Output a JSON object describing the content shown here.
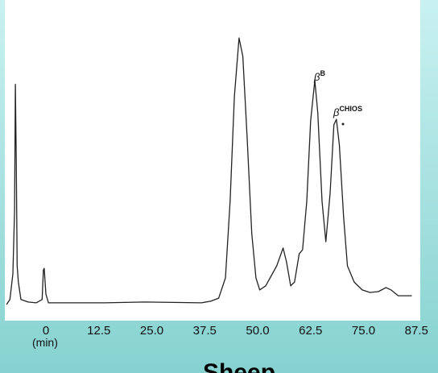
{
  "chart_data": {
    "type": "line",
    "title": "Sheep",
    "x_label": "(min)",
    "xlim": [
      -9.7,
      86.5
    ],
    "ylim": [
      0,
      100
    ],
    "xticks": [
      0,
      12.5,
      {
        "value": 25,
        "label": "25.0"
      },
      37.5,
      {
        "value": 50,
        "label": "50.0"
      },
      62.5,
      {
        "value": 75,
        "label": "75.0"
      },
      87.5
    ],
    "annotations": [
      {
        "text": "β",
        "sup": "B"
      },
      {
        "text": "β",
        "sup": "CHIOS"
      }
    ],
    "series": [
      {
        "color": "#222222",
        "x": [
          -9.3,
          -8.5,
          -7.8,
          -7.4,
          -7.2,
          -7.0,
          -6.8,
          -6.5,
          -5.9,
          -4.2,
          -2.3,
          -0.9,
          -0.6,
          -0.4,
          0,
          0.6,
          13.9,
          23.4,
          36.7,
          38.9,
          40.8,
          42.4,
          43.5,
          44.5,
          45.6,
          46.5,
          47.5,
          48.6,
          49.6,
          50.5,
          51.9,
          54.5,
          56,
          56.8,
          57.8,
          58.7,
          59.8,
          60.6,
          61.6,
          62.5,
          63.5,
          64.2,
          65.2,
          66.1,
          67.1,
          68,
          68.6,
          69.3,
          70.3,
          71.2,
          72.8,
          74.7,
          76.5,
          78.5,
          80.3,
          81.5,
          83.2,
          86.4
        ],
        "values": [
          0.6,
          2.4,
          11.8,
          35,
          81,
          53,
          14.7,
          8.8,
          2.4,
          1.5,
          1.2,
          2.4,
          13.2,
          13.8,
          4.4,
          1.2,
          1.2,
          1.5,
          1.2,
          1.8,
          2.9,
          10.3,
          38.2,
          76.5,
          97.9,
          91.2,
          61.8,
          26.5,
          10.3,
          5.9,
          7.4,
          14.7,
          21.2,
          16.2,
          7.4,
          8.8,
          19.1,
          20.6,
          38.2,
          67.6,
          82.4,
          70.6,
          38.2,
          23.5,
          41.2,
          66.2,
          68.2,
          58.8,
          32.4,
          14.7,
          8.8,
          5.9,
          5.0,
          5.3,
          6.8,
          5.9,
          3.8,
          3.8
        ]
      }
    ]
  }
}
